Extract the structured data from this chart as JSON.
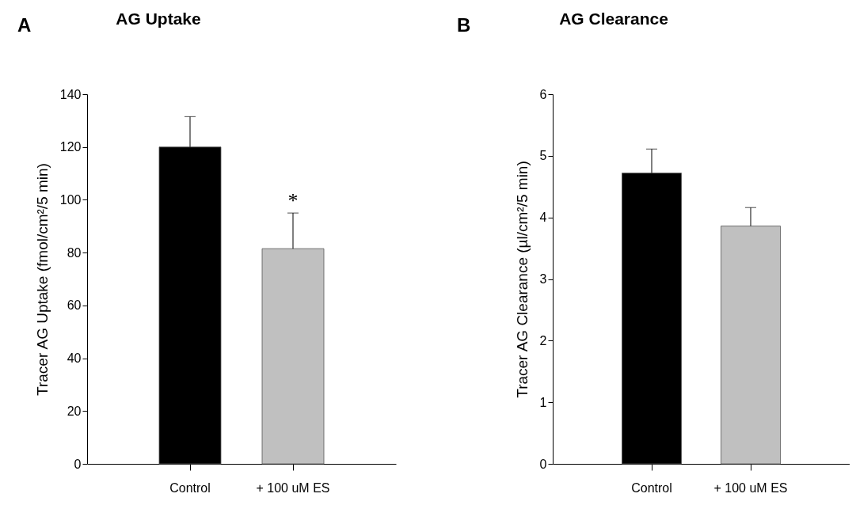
{
  "chart_data": [
    {
      "type": "bar",
      "title": "AG Uptake",
      "ylabel": "Tracer AG Uptake (fmol/cm²/5 min)",
      "categories": [
        "Control",
        "+ 100 uM ES"
      ],
      "values": [
        120,
        81.5
      ],
      "errors": [
        11.5,
        13.5
      ],
      "colors": [
        "#000000",
        "#c0c0c0"
      ],
      "ylim": [
        0,
        140
      ],
      "yticks": [
        0,
        20,
        40,
        60,
        80,
        100,
        120,
        140
      ],
      "annotations": [
        "A",
        {
          "text": "*",
          "x": "+ 100 uM ES",
          "y": 95
        }
      ]
    },
    {
      "type": "bar",
      "title": "AG Clearance",
      "ylabel": "Tracer AG Clearance (µl/cm²/5 min)",
      "categories": [
        "Control",
        "+ 100 uM ES"
      ],
      "values": [
        4.72,
        3.86
      ],
      "errors": [
        0.39,
        0.3
      ],
      "colors": [
        "#000000",
        "#c0c0c0"
      ],
      "ylim": [
        0,
        6
      ],
      "yticks": [
        0,
        1,
        2,
        3,
        4,
        5,
        6
      ],
      "annotations": [
        "B"
      ]
    }
  ]
}
